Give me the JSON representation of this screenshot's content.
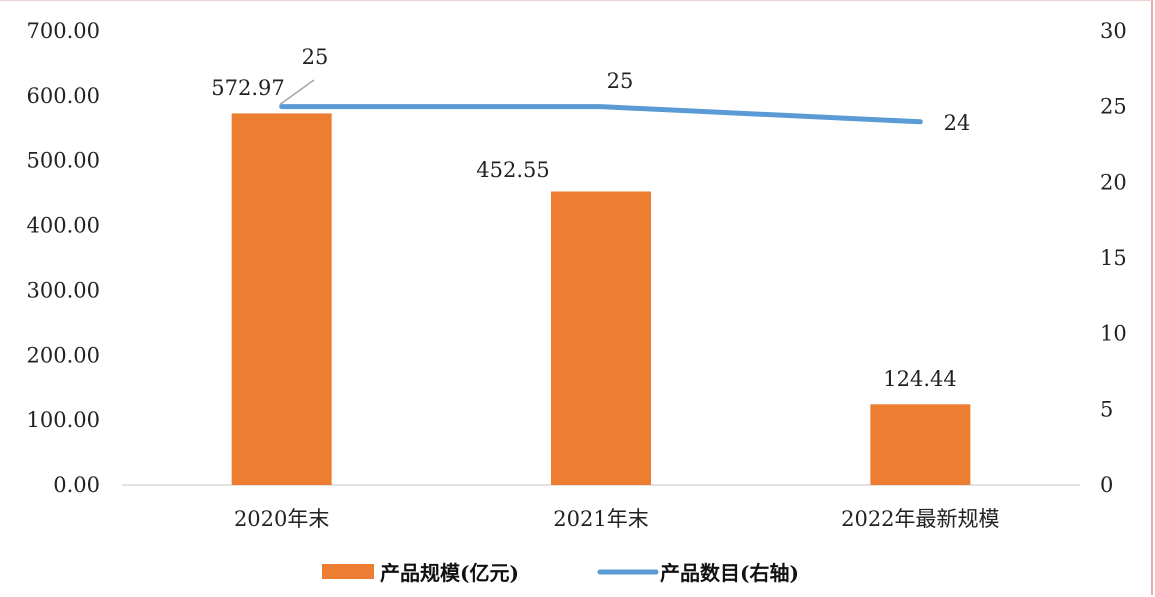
{
  "chart_data": {
    "type": "bar",
    "categories": [
      "2020年末",
      "2021年末",
      "2022年最新规模"
    ],
    "series": [
      {
        "name": "产品规模(亿元)",
        "type": "bar",
        "axis": "left",
        "color": "#ed7d31",
        "values": [
          572.97,
          452.55,
          124.44
        ],
        "labels": [
          "572.97",
          "452.55",
          "124.44"
        ]
      },
      {
        "name": "产品数目(右轴)",
        "type": "line",
        "axis": "right",
        "color": "#5b9bd5",
        "values": [
          25,
          25,
          24
        ],
        "labels": [
          "25",
          "25",
          "24"
        ]
      }
    ],
    "y_left": {
      "ylim": [
        0,
        700
      ],
      "ticks": [
        "0.00",
        "100.00",
        "200.00",
        "300.00",
        "400.00",
        "500.00",
        "600.00",
        "700.00"
      ]
    },
    "y_right": {
      "ylim": [
        0,
        30
      ],
      "ticks": [
        "0",
        "5",
        "10",
        "15",
        "20",
        "25",
        "30"
      ]
    },
    "grid": false,
    "legend_position": "bottom",
    "title": "",
    "xlabel": "",
    "ylabel": ""
  }
}
